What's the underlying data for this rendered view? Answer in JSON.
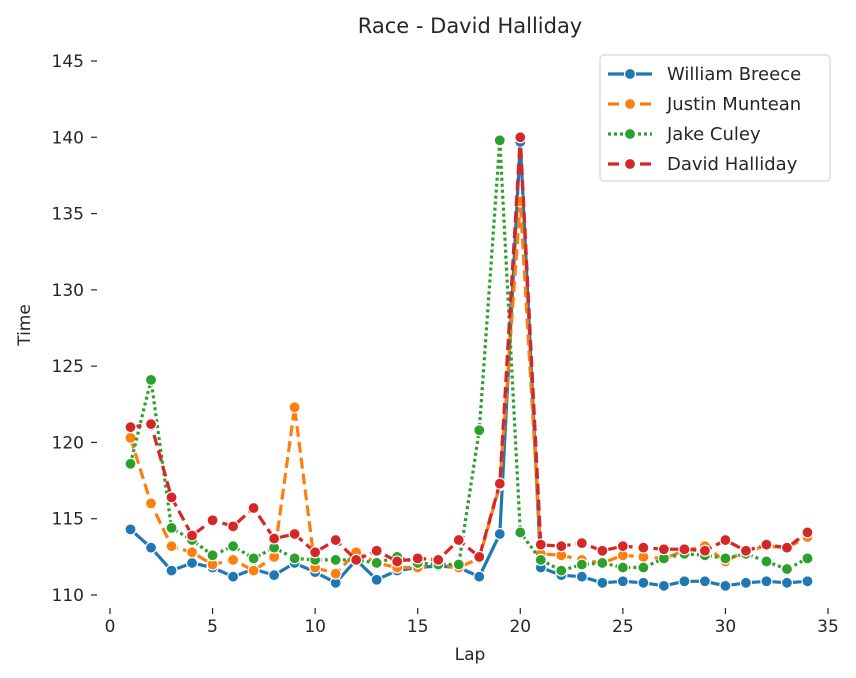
{
  "chart_data": {
    "type": "line",
    "title": "Race - David Halliday",
    "xlabel": "Lap",
    "ylabel": "Time",
    "xlim": [
      0,
      35
    ],
    "ylim": [
      110,
      145
    ],
    "xticks": [
      0,
      5,
      10,
      15,
      20,
      25,
      30,
      35
    ],
    "yticks": [
      110,
      115,
      120,
      125,
      130,
      135,
      140,
      145
    ],
    "grid": false,
    "legend_position": "top-right",
    "x": [
      1,
      2,
      3,
      4,
      5,
      6,
      7,
      8,
      9,
      10,
      11,
      12,
      13,
      14,
      15,
      16,
      17,
      18,
      19,
      20,
      21,
      22,
      23,
      24,
      25,
      26,
      27,
      28,
      29,
      30,
      31,
      32,
      33,
      34
    ],
    "series": [
      {
        "name": "William Breece",
        "color": "#1f77b4",
        "dash": "solid",
        "values": [
          114.3,
          113.1,
          111.6,
          112.1,
          111.8,
          111.2,
          111.7,
          111.3,
          112.1,
          111.5,
          110.8,
          112.3,
          111.0,
          111.6,
          111.8,
          111.9,
          111.8,
          111.2,
          114.0,
          139.7,
          111.8,
          111.3,
          111.2,
          110.8,
          110.9,
          110.8,
          110.6,
          110.9,
          110.9,
          110.6,
          110.8,
          110.9,
          110.8,
          110.9
        ]
      },
      {
        "name": "Justin Muntean",
        "color": "#ff7f0e",
        "dash": "dashed",
        "values": [
          120.3,
          116.0,
          113.2,
          112.8,
          112.0,
          112.3,
          111.6,
          112.5,
          122.3,
          111.8,
          111.4,
          112.8,
          112.1,
          111.8,
          111.8,
          112.0,
          111.8,
          112.4,
          117.2,
          135.8,
          112.7,
          112.6,
          112.3,
          112.1,
          112.6,
          112.5,
          112.4,
          112.9,
          113.2,
          112.2,
          112.9,
          113.2,
          113.1,
          113.8
        ]
      },
      {
        "name": "Jake Culey",
        "color": "#2ca02c",
        "dash": "dotted",
        "values": [
          118.6,
          124.1,
          114.4,
          113.6,
          112.6,
          113.2,
          112.4,
          113.1,
          112.4,
          112.3,
          112.3,
          112.3,
          112.1,
          112.5,
          112.1,
          112.0,
          112.0,
          120.8,
          139.8,
          114.1,
          112.3,
          111.6,
          112.0,
          112.1,
          111.8,
          111.8,
          112.4,
          112.7,
          112.6,
          112.4,
          112.7,
          112.2,
          111.7,
          112.4
        ]
      },
      {
        "name": "David Halliday",
        "color": "#d62728",
        "dash": "dashed",
        "values": [
          121.0,
          121.2,
          116.4,
          113.9,
          114.9,
          114.5,
          115.7,
          113.7,
          114.0,
          112.8,
          113.6,
          112.3,
          112.9,
          112.2,
          112.4,
          112.3,
          113.6,
          112.5,
          117.3,
          140.0,
          113.3,
          113.2,
          113.4,
          112.9,
          113.2,
          113.1,
          113.0,
          113.0,
          112.9,
          113.6,
          112.9,
          113.3,
          113.1,
          114.1
        ]
      }
    ]
  }
}
